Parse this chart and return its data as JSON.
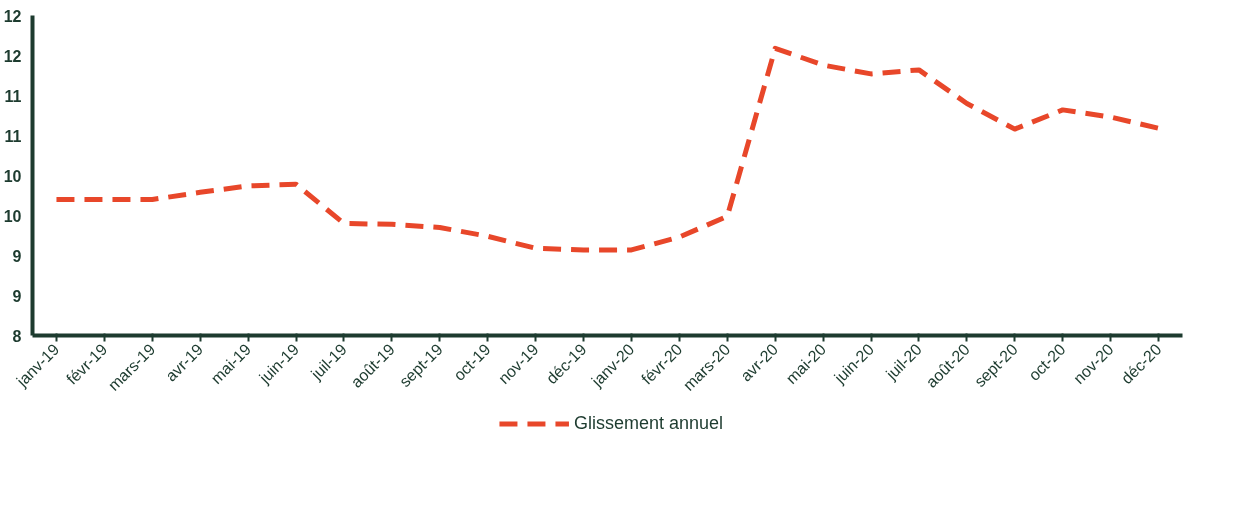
{
  "chart_data": {
    "type": "line",
    "categories": [
      "janv-19",
      "févr-19",
      "mars-19",
      "avr-19",
      "mai-19",
      "juin-19",
      "juil-19",
      "août-19",
      "sept-19",
      "oct-19",
      "nov-19",
      "déc-19",
      "janv-20",
      "févr-20",
      "mars-20",
      "avr-20",
      "mai-20",
      "juin-20",
      "juil-20",
      "août-20",
      "sept-20",
      "oct-20",
      "nov-20",
      "déc-20"
    ],
    "series": [
      {
        "name": "Glissement annuel",
        "color": "#e8472a",
        "values": [
          9.7,
          9.7,
          9.7,
          9.79,
          9.87,
          9.89,
          9.4,
          9.39,
          9.35,
          9.24,
          9.09,
          9.07,
          9.07,
          9.23,
          9.49,
          11.59,
          11.38,
          11.27,
          11.32,
          10.9,
          10.58,
          10.82,
          10.73,
          10.59
        ]
      }
    ],
    "ylim": [
      8,
      12
    ],
    "yticks": [
      8,
      {
        "value": 8.5,
        "label": "9"
      },
      9,
      {
        "value": 9.5,
        "label": "10"
      },
      10,
      {
        "value": 10.5,
        "label": "11"
      },
      11,
      {
        "value": 11.5,
        "label": "12"
      },
      12
    ],
    "grid": false,
    "legend": "bottom",
    "line_style": "dashed",
    "marker": "none"
  }
}
